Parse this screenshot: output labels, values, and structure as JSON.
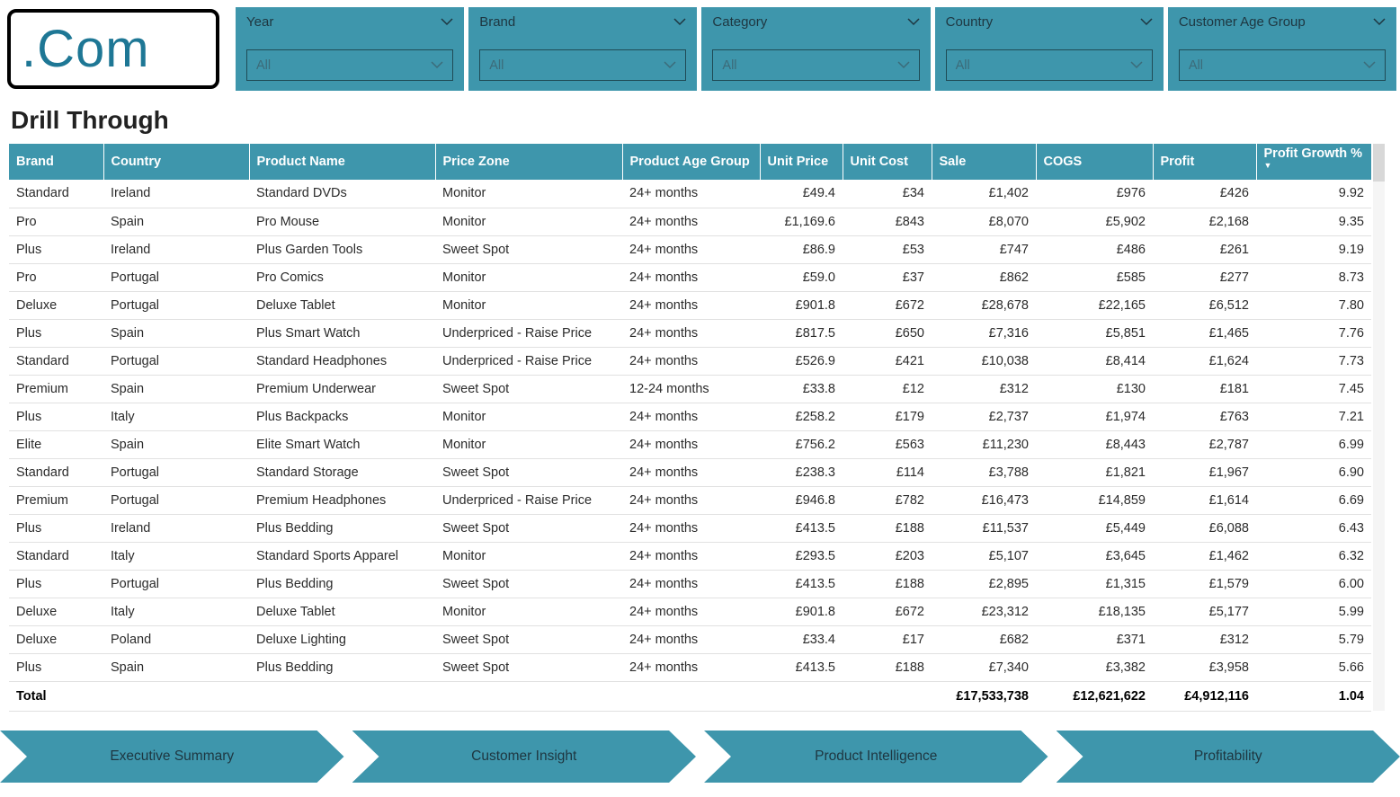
{
  "colors": {
    "accent": "#3E96AC",
    "logo_text": "#1E7795"
  },
  "logo": {
    "text": ".Com"
  },
  "page_title": "Drill Through",
  "slicers": [
    {
      "label": "Year",
      "value": "All"
    },
    {
      "label": "Brand",
      "value": "All"
    },
    {
      "label": "Category",
      "value": "All"
    },
    {
      "label": "Country",
      "value": "All"
    },
    {
      "label": "Customer Age Group",
      "value": "All"
    }
  ],
  "table": {
    "columns": [
      "Brand",
      "Country",
      "Product Name",
      "Price Zone",
      "Product Age Group",
      "Unit Price",
      "Unit Cost",
      "Sale",
      "COGS",
      "Profit",
      "Profit Growth %"
    ],
    "sort_column": "Profit Growth %",
    "sort_direction": "descending",
    "rows": [
      [
        "Standard",
        "Ireland",
        "Standard DVDs",
        "Monitor",
        "24+ months",
        "£49.4",
        "£34",
        "£1,402",
        "£976",
        "£426",
        "9.92"
      ],
      [
        "Pro",
        "Spain",
        "Pro Mouse",
        "Monitor",
        "24+ months",
        "£1,169.6",
        "£843",
        "£8,070",
        "£5,902",
        "£2,168",
        "9.35"
      ],
      [
        "Plus",
        "Ireland",
        "Plus Garden Tools",
        "Sweet Spot",
        "24+ months",
        "£86.9",
        "£53",
        "£747",
        "£486",
        "£261",
        "9.19"
      ],
      [
        "Pro",
        "Portugal",
        "Pro Comics",
        "Monitor",
        "24+ months",
        "£59.0",
        "£37",
        "£862",
        "£585",
        "£277",
        "8.73"
      ],
      [
        "Deluxe",
        "Portugal",
        "Deluxe Tablet",
        "Monitor",
        "24+ months",
        "£901.8",
        "£672",
        "£28,678",
        "£22,165",
        "£6,512",
        "7.80"
      ],
      [
        "Plus",
        "Spain",
        "Plus Smart Watch",
        "Underpriced - Raise Price",
        "24+ months",
        "£817.5",
        "£650",
        "£7,316",
        "£5,851",
        "£1,465",
        "7.76"
      ],
      [
        "Standard",
        "Portugal",
        "Standard Headphones",
        "Underpriced - Raise Price",
        "24+ months",
        "£526.9",
        "£421",
        "£10,038",
        "£8,414",
        "£1,624",
        "7.73"
      ],
      [
        "Premium",
        "Spain",
        "Premium Underwear",
        "Sweet Spot",
        "12-24 months",
        "£33.8",
        "£12",
        "£312",
        "£130",
        "£181",
        "7.45"
      ],
      [
        "Plus",
        "Italy",
        "Plus Backpacks",
        "Monitor",
        "24+ months",
        "£258.2",
        "£179",
        "£2,737",
        "£1,974",
        "£763",
        "7.21"
      ],
      [
        "Elite",
        "Spain",
        "Elite Smart Watch",
        "Monitor",
        "24+ months",
        "£756.2",
        "£563",
        "£11,230",
        "£8,443",
        "£2,787",
        "6.99"
      ],
      [
        "Standard",
        "Portugal",
        "Standard Storage",
        "Sweet Spot",
        "24+ months",
        "£238.3",
        "£114",
        "£3,788",
        "£1,821",
        "£1,967",
        "6.90"
      ],
      [
        "Premium",
        "Portugal",
        "Premium Headphones",
        "Underpriced - Raise Price",
        "24+ months",
        "£946.8",
        "£782",
        "£16,473",
        "£14,859",
        "£1,614",
        "6.69"
      ],
      [
        "Plus",
        "Ireland",
        "Plus Bedding",
        "Sweet Spot",
        "24+ months",
        "£413.5",
        "£188",
        "£11,537",
        "£5,449",
        "£6,088",
        "6.43"
      ],
      [
        "Standard",
        "Italy",
        "Standard Sports Apparel",
        "Monitor",
        "24+ months",
        "£293.5",
        "£203",
        "£5,107",
        "£3,645",
        "£1,462",
        "6.32"
      ],
      [
        "Plus",
        "Portugal",
        "Plus Bedding",
        "Sweet Spot",
        "24+ months",
        "£413.5",
        "£188",
        "£2,895",
        "£1,315",
        "£1,579",
        "6.00"
      ],
      [
        "Deluxe",
        "Italy",
        "Deluxe Tablet",
        "Monitor",
        "24+ months",
        "£901.8",
        "£672",
        "£23,312",
        "£18,135",
        "£5,177",
        "5.99"
      ],
      [
        "Deluxe",
        "Poland",
        "Deluxe Lighting",
        "Sweet Spot",
        "24+ months",
        "£33.4",
        "£17",
        "£682",
        "£371",
        "£312",
        "5.79"
      ],
      [
        "Plus",
        "Spain",
        "Plus Bedding",
        "Sweet Spot",
        "24+ months",
        "£413.5",
        "£188",
        "£7,340",
        "£3,382",
        "£3,958",
        "5.66"
      ]
    ],
    "total": {
      "label": "Total",
      "sale": "£17,533,738",
      "cogs": "£12,621,622",
      "profit": "£4,912,116",
      "profit_growth": "1.04"
    }
  },
  "nav": [
    {
      "label": "Executive Summary"
    },
    {
      "label": "Customer Insight"
    },
    {
      "label": "Product Intelligence"
    },
    {
      "label": "Profitability"
    }
  ]
}
